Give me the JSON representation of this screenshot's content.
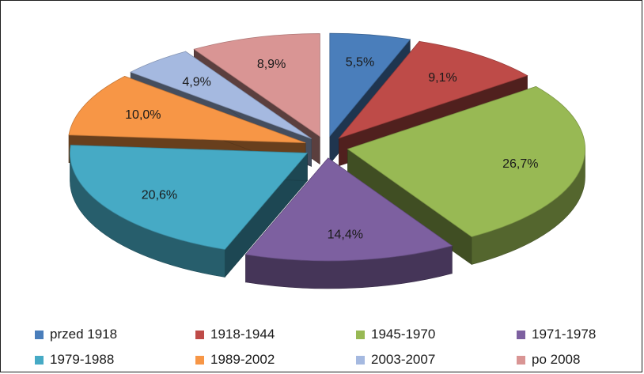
{
  "chart_data": {
    "type": "pie",
    "style": "exploded-3d",
    "title": "",
    "categories": [
      "przed 1918",
      "1918-1944",
      "1945-1970",
      "1971-1978",
      "1979-1988",
      "1989-2002",
      "2003-2007",
      "po 2008"
    ],
    "values": [
      5.5,
      9.1,
      26.7,
      14.4,
      20.6,
      10.0,
      4.9,
      8.9
    ],
    "value_labels": [
      "5,5%",
      "9,1%",
      "26,7%",
      "14,4%",
      "20,6%",
      "10,0%",
      "4,9%",
      "8,9%"
    ],
    "colors": [
      "#4a7ebb",
      "#be4b48",
      "#98b954",
      "#7d60a0",
      "#46aac5",
      "#f79646",
      "#a5b9e0",
      "#d99594"
    ],
    "legend_position": "bottom",
    "legend": [
      {
        "label": "przed 1918",
        "color": "#4a7ebb"
      },
      {
        "label": "1918-1944",
        "color": "#be4b48"
      },
      {
        "label": "1945-1970",
        "color": "#98b954"
      },
      {
        "label": "1971-1978",
        "color": "#7d60a0"
      },
      {
        "label": "1979-1988",
        "color": "#46aac5"
      },
      {
        "label": "1989-2002",
        "color": "#f79646"
      },
      {
        "label": "2003-2007",
        "color": "#a5b9e0"
      },
      {
        "label": "po 2008",
        "color": "#d99594"
      }
    ]
  }
}
